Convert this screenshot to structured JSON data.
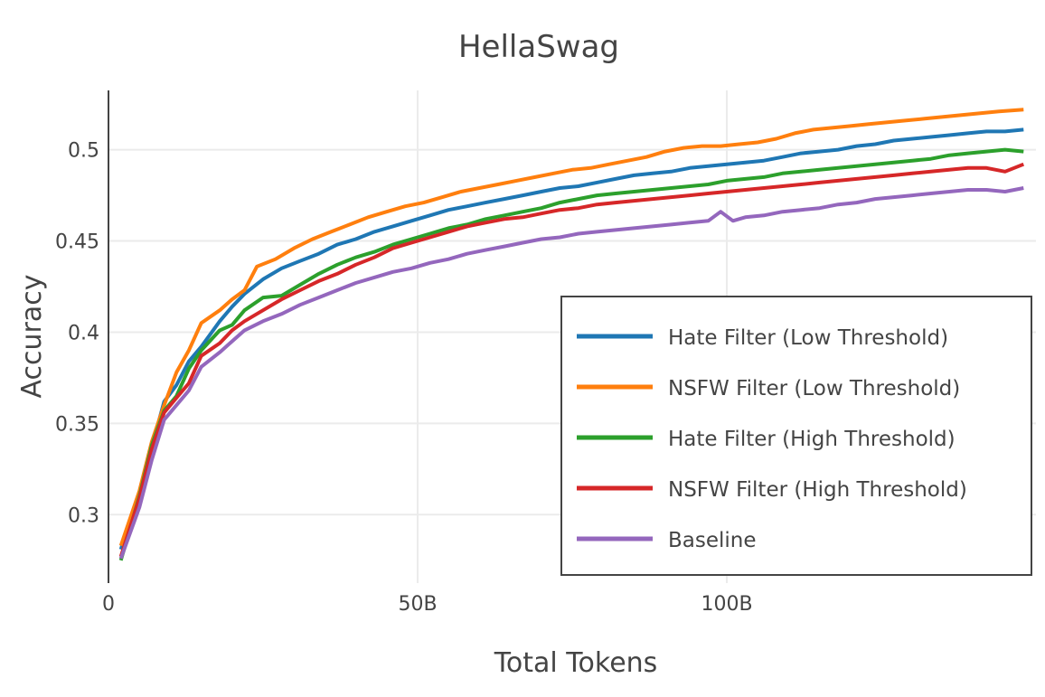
{
  "chart_data": {
    "type": "line",
    "title": "HellaSwag",
    "xlabel": "Total Tokens",
    "ylabel": "Accuracy",
    "xlim": [
      0,
      150
    ],
    "ylim": [
      0.2625,
      0.5325
    ],
    "xticks": [
      0,
      50,
      100
    ],
    "xtick_labels": [
      "0",
      "50B",
      "100B"
    ],
    "yticks": [
      0.3,
      0.35,
      0.4,
      0.45,
      0.5
    ],
    "ytick_labels": [
      "0.3",
      "0.35",
      "0.4",
      "0.45",
      "0.5"
    ],
    "grid": true,
    "legend_position": "bottom-right",
    "series": [
      {
        "name": "Hate Filter (Low Threshold)",
        "color": "#1f77b4",
        "points": [
          [
            2,
            0.281
          ],
          [
            5,
            0.312
          ],
          [
            7,
            0.337
          ],
          [
            9,
            0.362
          ],
          [
            11,
            0.371
          ],
          [
            13,
            0.384
          ],
          [
            15,
            0.392
          ],
          [
            18,
            0.406
          ],
          [
            20,
            0.414
          ],
          [
            22,
            0.421
          ],
          [
            25,
            0.429
          ],
          [
            28,
            0.435
          ],
          [
            31,
            0.439
          ],
          [
            34,
            0.443
          ],
          [
            37,
            0.448
          ],
          [
            40,
            0.451
          ],
          [
            43,
            0.455
          ],
          [
            46,
            0.458
          ],
          [
            49,
            0.461
          ],
          [
            52,
            0.464
          ],
          [
            55,
            0.467
          ],
          [
            58,
            0.469
          ],
          [
            61,
            0.471
          ],
          [
            64,
            0.473
          ],
          [
            67,
            0.475
          ],
          [
            70,
            0.477
          ],
          [
            73,
            0.479
          ],
          [
            76,
            0.48
          ],
          [
            79,
            0.482
          ],
          [
            82,
            0.484
          ],
          [
            85,
            0.486
          ],
          [
            88,
            0.487
          ],
          [
            91,
            0.488
          ],
          [
            94,
            0.49
          ],
          [
            97,
            0.491
          ],
          [
            100,
            0.492
          ],
          [
            103,
            0.493
          ],
          [
            106,
            0.494
          ],
          [
            109,
            0.496
          ],
          [
            112,
            0.498
          ],
          [
            115,
            0.499
          ],
          [
            118,
            0.5
          ],
          [
            121,
            0.502
          ],
          [
            124,
            0.503
          ],
          [
            127,
            0.505
          ],
          [
            130,
            0.506
          ],
          [
            133,
            0.507
          ],
          [
            136,
            0.508
          ],
          [
            139,
            0.509
          ],
          [
            142,
            0.51
          ],
          [
            145,
            0.51
          ],
          [
            148,
            0.511
          ]
        ]
      },
      {
        "name": "NSFW Filter (Low Threshold)",
        "color": "#ff7f0e",
        "points": [
          [
            2,
            0.283
          ],
          [
            5,
            0.313
          ],
          [
            7,
            0.34
          ],
          [
            9,
            0.36
          ],
          [
            11,
            0.378
          ],
          [
            13,
            0.39
          ],
          [
            15,
            0.405
          ],
          [
            18,
            0.412
          ],
          [
            20,
            0.418
          ],
          [
            22,
            0.423
          ],
          [
            24,
            0.436
          ],
          [
            27,
            0.44
          ],
          [
            30,
            0.446
          ],
          [
            33,
            0.451
          ],
          [
            36,
            0.455
          ],
          [
            39,
            0.459
          ],
          [
            42,
            0.463
          ],
          [
            45,
            0.466
          ],
          [
            48,
            0.469
          ],
          [
            51,
            0.471
          ],
          [
            54,
            0.474
          ],
          [
            57,
            0.477
          ],
          [
            60,
            0.479
          ],
          [
            63,
            0.481
          ],
          [
            66,
            0.483
          ],
          [
            69,
            0.485
          ],
          [
            72,
            0.487
          ],
          [
            75,
            0.489
          ],
          [
            78,
            0.49
          ],
          [
            81,
            0.492
          ],
          [
            84,
            0.494
          ],
          [
            87,
            0.496
          ],
          [
            90,
            0.499
          ],
          [
            93,
            0.501
          ],
          [
            96,
            0.502
          ],
          [
            99,
            0.502
          ],
          [
            102,
            0.503
          ],
          [
            105,
            0.504
          ],
          [
            108,
            0.506
          ],
          [
            111,
            0.509
          ],
          [
            114,
            0.511
          ],
          [
            117,
            0.512
          ],
          [
            120,
            0.513
          ],
          [
            123,
            0.514
          ],
          [
            126,
            0.515
          ],
          [
            129,
            0.516
          ],
          [
            132,
            0.517
          ],
          [
            135,
            0.518
          ],
          [
            138,
            0.519
          ],
          [
            141,
            0.52
          ],
          [
            144,
            0.521
          ],
          [
            148,
            0.522
          ]
        ]
      },
      {
        "name": "Hate Filter (High Threshold)",
        "color": "#2ca02c",
        "points": [
          [
            2,
            0.275
          ],
          [
            5,
            0.31
          ],
          [
            7,
            0.338
          ],
          [
            9,
            0.357
          ],
          [
            11,
            0.365
          ],
          [
            13,
            0.38
          ],
          [
            15,
            0.39
          ],
          [
            18,
            0.401
          ],
          [
            20,
            0.404
          ],
          [
            22,
            0.412
          ],
          [
            25,
            0.419
          ],
          [
            28,
            0.42
          ],
          [
            31,
            0.426
          ],
          [
            34,
            0.432
          ],
          [
            37,
            0.437
          ],
          [
            40,
            0.441
          ],
          [
            43,
            0.444
          ],
          [
            46,
            0.448
          ],
          [
            49,
            0.451
          ],
          [
            52,
            0.454
          ],
          [
            55,
            0.457
          ],
          [
            58,
            0.459
          ],
          [
            61,
            0.462
          ],
          [
            64,
            0.464
          ],
          [
            67,
            0.466
          ],
          [
            70,
            0.468
          ],
          [
            73,
            0.471
          ],
          [
            76,
            0.473
          ],
          [
            79,
            0.475
          ],
          [
            82,
            0.476
          ],
          [
            85,
            0.477
          ],
          [
            88,
            0.478
          ],
          [
            91,
            0.479
          ],
          [
            94,
            0.48
          ],
          [
            97,
            0.481
          ],
          [
            100,
            0.483
          ],
          [
            103,
            0.484
          ],
          [
            106,
            0.485
          ],
          [
            109,
            0.487
          ],
          [
            112,
            0.488
          ],
          [
            115,
            0.489
          ],
          [
            118,
            0.49
          ],
          [
            121,
            0.491
          ],
          [
            124,
            0.492
          ],
          [
            127,
            0.493
          ],
          [
            130,
            0.494
          ],
          [
            133,
            0.495
          ],
          [
            136,
            0.497
          ],
          [
            139,
            0.498
          ],
          [
            142,
            0.499
          ],
          [
            145,
            0.5
          ],
          [
            148,
            0.499
          ]
        ]
      },
      {
        "name": "NSFW Filter (High Threshold)",
        "color": "#d62728",
        "points": [
          [
            2,
            0.277
          ],
          [
            5,
            0.309
          ],
          [
            7,
            0.336
          ],
          [
            9,
            0.356
          ],
          [
            11,
            0.364
          ],
          [
            13,
            0.372
          ],
          [
            15,
            0.387
          ],
          [
            18,
            0.394
          ],
          [
            20,
            0.401
          ],
          [
            22,
            0.406
          ],
          [
            25,
            0.412
          ],
          [
            28,
            0.418
          ],
          [
            31,
            0.423
          ],
          [
            34,
            0.428
          ],
          [
            37,
            0.432
          ],
          [
            40,
            0.437
          ],
          [
            43,
            0.441
          ],
          [
            46,
            0.446
          ],
          [
            49,
            0.449
          ],
          [
            52,
            0.452
          ],
          [
            55,
            0.455
          ],
          [
            58,
            0.458
          ],
          [
            61,
            0.46
          ],
          [
            64,
            0.462
          ],
          [
            67,
            0.463
          ],
          [
            70,
            0.465
          ],
          [
            73,
            0.467
          ],
          [
            76,
            0.468
          ],
          [
            79,
            0.47
          ],
          [
            82,
            0.471
          ],
          [
            85,
            0.472
          ],
          [
            88,
            0.473
          ],
          [
            91,
            0.474
          ],
          [
            94,
            0.475
          ],
          [
            97,
            0.476
          ],
          [
            100,
            0.477
          ],
          [
            103,
            0.478
          ],
          [
            106,
            0.479
          ],
          [
            109,
            0.48
          ],
          [
            112,
            0.481
          ],
          [
            115,
            0.482
          ],
          [
            118,
            0.483
          ],
          [
            121,
            0.484
          ],
          [
            124,
            0.485
          ],
          [
            127,
            0.486
          ],
          [
            130,
            0.487
          ],
          [
            133,
            0.488
          ],
          [
            136,
            0.489
          ],
          [
            139,
            0.49
          ],
          [
            142,
            0.49
          ],
          [
            145,
            0.488
          ],
          [
            148,
            0.492
          ]
        ]
      },
      {
        "name": "Baseline",
        "color": "#9467bd",
        "points": [
          [
            2,
            0.276
          ],
          [
            5,
            0.304
          ],
          [
            7,
            0.33
          ],
          [
            9,
            0.352
          ],
          [
            11,
            0.36
          ],
          [
            13,
            0.368
          ],
          [
            15,
            0.381
          ],
          [
            18,
            0.389
          ],
          [
            20,
            0.395
          ],
          [
            22,
            0.401
          ],
          [
            25,
            0.406
          ],
          [
            28,
            0.41
          ],
          [
            31,
            0.415
          ],
          [
            34,
            0.419
          ],
          [
            37,
            0.423
          ],
          [
            40,
            0.427
          ],
          [
            43,
            0.43
          ],
          [
            46,
            0.433
          ],
          [
            49,
            0.435
          ],
          [
            52,
            0.438
          ],
          [
            55,
            0.44
          ],
          [
            58,
            0.443
          ],
          [
            61,
            0.445
          ],
          [
            64,
            0.447
          ],
          [
            67,
            0.449
          ],
          [
            70,
            0.451
          ],
          [
            73,
            0.452
          ],
          [
            76,
            0.454
          ],
          [
            79,
            0.455
          ],
          [
            82,
            0.456
          ],
          [
            85,
            0.457
          ],
          [
            88,
            0.458
          ],
          [
            91,
            0.459
          ],
          [
            94,
            0.46
          ],
          [
            97,
            0.461
          ],
          [
            99,
            0.466
          ],
          [
            101,
            0.461
          ],
          [
            103,
            0.463
          ],
          [
            106,
            0.464
          ],
          [
            109,
            0.466
          ],
          [
            112,
            0.467
          ],
          [
            115,
            0.468
          ],
          [
            118,
            0.47
          ],
          [
            121,
            0.471
          ],
          [
            124,
            0.473
          ],
          [
            127,
            0.474
          ],
          [
            130,
            0.475
          ],
          [
            133,
            0.476
          ],
          [
            136,
            0.477
          ],
          [
            139,
            0.478
          ],
          [
            142,
            0.478
          ],
          [
            145,
            0.477
          ],
          [
            148,
            0.479
          ]
        ]
      }
    ]
  }
}
